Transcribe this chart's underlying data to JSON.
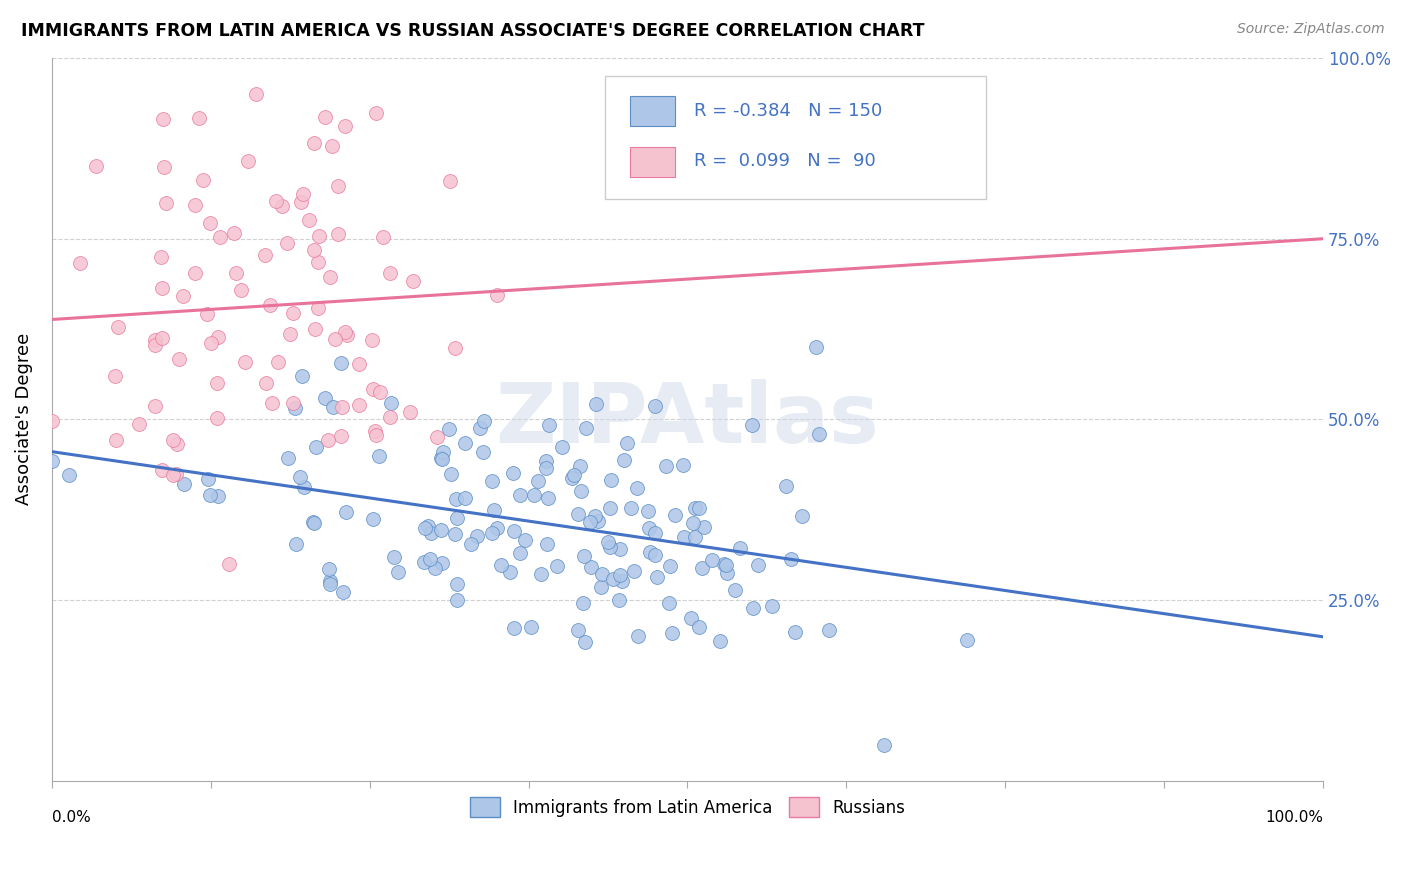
{
  "title": "IMMIGRANTS FROM LATIN AMERICA VS RUSSIAN ASSOCIATE'S DEGREE CORRELATION CHART",
  "source": "Source: ZipAtlas.com",
  "ylabel": "Associate's Degree",
  "y_tick_vals": [
    25,
    50,
    75,
    100
  ],
  "y_tick_labels": [
    "25.0%",
    "50.0%",
    "75.0%",
    "100.0%"
  ],
  "blue_R": -0.384,
  "blue_N": 150,
  "pink_R": 0.099,
  "pink_N": 90,
  "blue_color": "#aec6e8",
  "blue_edge_color": "#5b8ec4",
  "blue_line_color": "#4472c4",
  "pink_color": "#f5c2d0",
  "pink_edge_color": "#e87aa0",
  "pink_line_color": "#e8729a",
  "background_color": "#ffffff",
  "grid_color": "#cccccc",
  "tick_label_color": "#4472c4",
  "watermark_color": "#d0d8e8",
  "seed_blue": 42,
  "seed_pink": 7
}
